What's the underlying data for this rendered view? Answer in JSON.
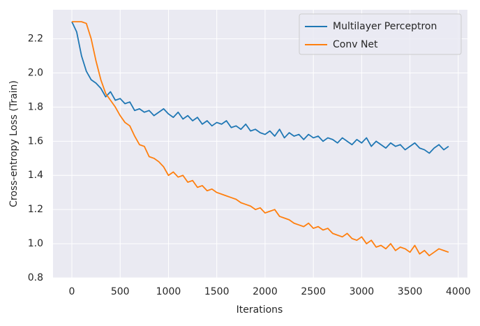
{
  "chart_data": {
    "type": "line",
    "xlabel": "Iterations",
    "ylabel": "Cross-entropy Loss (Train)",
    "x": [
      0,
      50,
      100,
      150,
      200,
      250,
      300,
      350,
      400,
      450,
      500,
      550,
      600,
      650,
      700,
      750,
      800,
      850,
      900,
      950,
      1000,
      1050,
      1100,
      1150,
      1200,
      1250,
      1300,
      1350,
      1400,
      1450,
      1500,
      1550,
      1600,
      1650,
      1700,
      1750,
      1800,
      1850,
      1900,
      1950,
      2000,
      2050,
      2100,
      2150,
      2200,
      2250,
      2300,
      2350,
      2400,
      2450,
      2500,
      2550,
      2600,
      2650,
      2700,
      2750,
      2800,
      2850,
      2900,
      2950,
      3000,
      3050,
      3100,
      3150,
      3200,
      3250,
      3300,
      3350,
      3400,
      3450,
      3500,
      3550,
      3600,
      3650,
      3700,
      3750,
      3800,
      3850,
      3900
    ],
    "series": [
      {
        "name": "Multilayer Perceptron",
        "color": "#1f77b4",
        "values": [
          2.3,
          2.24,
          2.1,
          2.01,
          1.96,
          1.94,
          1.91,
          1.86,
          1.89,
          1.84,
          1.85,
          1.82,
          1.83,
          1.78,
          1.79,
          1.77,
          1.78,
          1.75,
          1.77,
          1.79,
          1.76,
          1.74,
          1.77,
          1.73,
          1.75,
          1.72,
          1.74,
          1.7,
          1.72,
          1.69,
          1.71,
          1.7,
          1.72,
          1.68,
          1.69,
          1.67,
          1.7,
          1.66,
          1.67,
          1.65,
          1.64,
          1.66,
          1.63,
          1.67,
          1.62,
          1.65,
          1.63,
          1.64,
          1.61,
          1.64,
          1.62,
          1.63,
          1.6,
          1.62,
          1.61,
          1.59,
          1.62,
          1.6,
          1.58,
          1.61,
          1.59,
          1.62,
          1.57,
          1.6,
          1.58,
          1.56,
          1.59,
          1.57,
          1.58,
          1.55,
          1.57,
          1.59,
          1.56,
          1.55,
          1.53,
          1.56,
          1.58,
          1.55,
          1.57
        ]
      },
      {
        "name": "Conv Net",
        "color": "#ff7f0e",
        "values": [
          2.3,
          2.3,
          2.3,
          2.29,
          2.2,
          2.07,
          1.96,
          1.88,
          1.84,
          1.8,
          1.75,
          1.71,
          1.69,
          1.63,
          1.58,
          1.57,
          1.51,
          1.5,
          1.48,
          1.45,
          1.4,
          1.42,
          1.39,
          1.4,
          1.36,
          1.37,
          1.33,
          1.34,
          1.31,
          1.32,
          1.3,
          1.29,
          1.28,
          1.27,
          1.26,
          1.24,
          1.23,
          1.22,
          1.2,
          1.21,
          1.18,
          1.19,
          1.2,
          1.16,
          1.15,
          1.14,
          1.12,
          1.11,
          1.1,
          1.12,
          1.09,
          1.1,
          1.08,
          1.09,
          1.06,
          1.05,
          1.04,
          1.06,
          1.03,
          1.02,
          1.04,
          1.0,
          1.02,
          0.98,
          0.99,
          0.97,
          1.0,
          0.96,
          0.98,
          0.97,
          0.95,
          0.99,
          0.94,
          0.96,
          0.93,
          0.95,
          0.97,
          0.96,
          0.95
        ]
      }
    ],
    "xlim": [
      -195,
      4095
    ],
    "ylim": [
      0.8,
      2.37
    ],
    "xticks": [
      0,
      500,
      1000,
      1500,
      2000,
      2500,
      3000,
      3500,
      4000
    ],
    "yticks": [
      0.8,
      {
        "value": 1,
        "label": "1.0"
      },
      1.2,
      1.4,
      1.6,
      1.8,
      {
        "value": 2,
        "label": "2.0"
      },
      2.2
    ],
    "grid": true,
    "legend": "upper right"
  }
}
